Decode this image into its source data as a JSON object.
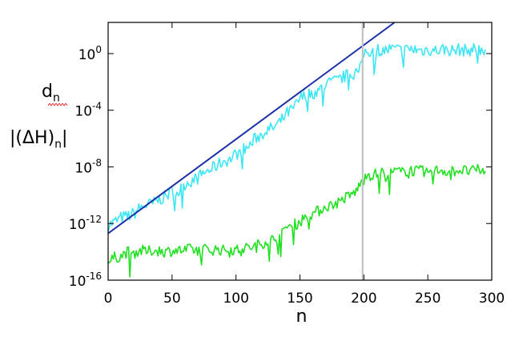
{
  "chart_data": {
    "type": "line",
    "xlabel": "n",
    "ylabel_lines": [
      {
        "main": "d",
        "sub": "n",
        "suffix": ""
      },
      {
        "main": "|(ΔH)",
        "sub": "n",
        "suffix": "|"
      }
    ],
    "xlim": [
      0,
      300
    ],
    "ylim_log10": [
      -16,
      2.2
    ],
    "y_scale": "log",
    "grid": false,
    "legend": "none",
    "x_ticks": [
      {
        "value": 0,
        "label": "0"
      },
      {
        "value": 50,
        "label": "50"
      },
      {
        "value": 100,
        "label": "100"
      },
      {
        "value": 150,
        "label": "150"
      },
      {
        "value": 200,
        "label": "200"
      },
      {
        "value": 250,
        "label": "250"
      },
      {
        "value": 300,
        "label": "300"
      }
    ],
    "y_ticks": [
      {
        "log10": 0,
        "base": "10",
        "exp": "0"
      },
      {
        "log10": -4,
        "base": "10",
        "exp": "-4"
      },
      {
        "log10": -8,
        "base": "10",
        "exp": "-8"
      },
      {
        "log10": -12,
        "base": "10",
        "exp": "-12"
      },
      {
        "log10": -16,
        "base": "10",
        "exp": "-16"
      }
    ],
    "vertical_marker": {
      "x": 199,
      "color": "#bdbdbd"
    },
    "series": [
      {
        "style": "cyan-noisy",
        "color": "#3ee6f5",
        "x": [
          0,
          5,
          10,
          15,
          20,
          25,
          30,
          35,
          40,
          45,
          50,
          55,
          60,
          65,
          70,
          75,
          80,
          85,
          90,
          95,
          100,
          105,
          110,
          115,
          120,
          125,
          130,
          135,
          140,
          145,
          150,
          155,
          160,
          165,
          170,
          175,
          180,
          185,
          190,
          195,
          198,
          200,
          205,
          210,
          215,
          220,
          225,
          230,
          235,
          240,
          245,
          250,
          255,
          260,
          265,
          270,
          275,
          280,
          285,
          290,
          295
        ],
        "log10_y": [
          -12.1,
          -11.9,
          -11.6,
          -11.5,
          -11.3,
          -10.9,
          -10.7,
          -10.6,
          -10.3,
          -10.1,
          -9.7,
          -9.8,
          -9.2,
          -9.0,
          -8.8,
          -8.4,
          -8.2,
          -7.9,
          -7.6,
          -7.5,
          -7.1,
          -6.8,
          -6.6,
          -6.0,
          -5.7,
          -5.4,
          -5.2,
          -4.8,
          -4.2,
          -3.9,
          -3.2,
          -2.9,
          -2.8,
          -2.6,
          -2.2,
          -2.0,
          -1.9,
          -1.6,
          -1.5,
          -1.3,
          -1.0,
          0.1,
          0.2,
          0.3,
          0.2,
          0.3,
          0.3,
          0.2,
          0.3,
          0.3,
          0.2,
          0.3,
          0.2,
          0.3,
          0.3,
          0.2,
          0.3,
          0.2,
          0.3,
          0.3,
          0.3
        ]
      },
      {
        "style": "green-noisy",
        "color": "#22e022",
        "x": [
          0,
          5,
          10,
          15,
          20,
          25,
          30,
          35,
          40,
          45,
          50,
          55,
          60,
          65,
          70,
          75,
          80,
          85,
          90,
          95,
          100,
          105,
          110,
          115,
          120,
          125,
          130,
          135,
          140,
          145,
          150,
          155,
          160,
          165,
          170,
          175,
          180,
          185,
          190,
          195,
          198,
          200,
          205,
          210,
          215,
          220,
          225,
          230,
          235,
          240,
          245,
          250,
          255,
          260,
          265,
          270,
          275,
          280,
          285,
          290,
          295
        ],
        "log10_y": [
          -14.8,
          -14.4,
          -14.3,
          -14.0,
          -14.1,
          -13.9,
          -14.0,
          -13.9,
          -13.9,
          -14.0,
          -13.9,
          -13.9,
          -13.9,
          -13.8,
          -13.9,
          -13.8,
          -13.9,
          -13.8,
          -13.9,
          -13.8,
          -13.9,
          -13.8,
          -13.7,
          -13.6,
          -13.4,
          -13.2,
          -13.1,
          -12.9,
          -12.2,
          -12.1,
          -11.9,
          -11.4,
          -11.3,
          -11.1,
          -10.8,
          -10.7,
          -10.5,
          -10.2,
          -10.0,
          -9.6,
          -9.1,
          -8.4,
          -8.6,
          -8.5,
          -8.4,
          -8.5,
          -8.3,
          -8.4,
          -8.2,
          -8.3,
          -8.3,
          -8.4,
          -8.3,
          -8.2,
          -8.3,
          -8.3,
          -8.2,
          -8.3,
          -8.3,
          -8.2,
          -8.3
        ]
      },
      {
        "style": "fit-line",
        "color": "#1c2fa8",
        "x": [
          0,
          224
        ],
        "log10_y": [
          -12.7,
          2.2
        ]
      }
    ]
  }
}
